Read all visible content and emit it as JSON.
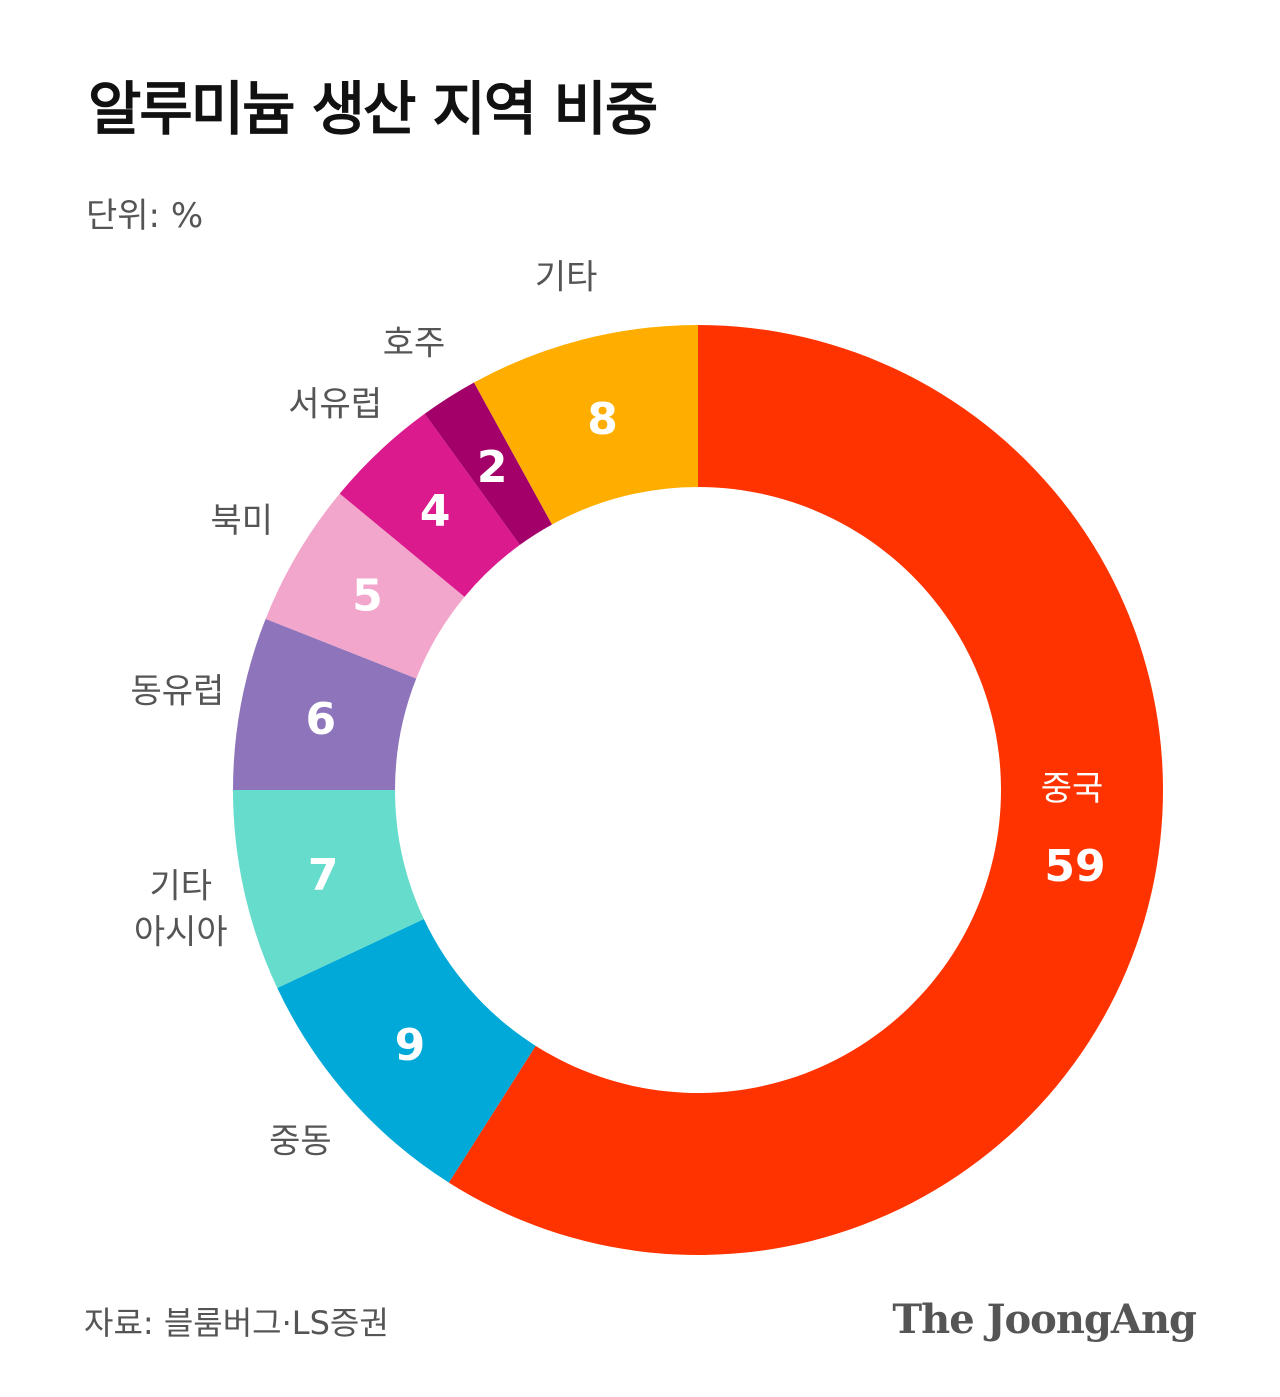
{
  "title": "알루미늄 생산 지역 비중",
  "unit": "단위: %",
  "source": "자료: 블룸버그·LS증권",
  "logo": "The JoongAng",
  "chart_data": {
    "type": "pie",
    "donut": true,
    "start": "top, clockwise",
    "categories": [
      "중국",
      "중동",
      "기타 아시아",
      "동유럽",
      "북미",
      "서유럽",
      "호주",
      "기타"
    ],
    "values": [
      59,
      9,
      7,
      6,
      5,
      4,
      2,
      8
    ],
    "colors": [
      "#FF3300",
      "#00A9D8",
      "#66DDCC",
      "#8E74BA",
      "#F2A6CB",
      "#DB1A8E",
      "#A3006A",
      "#FFAE00"
    ]
  }
}
